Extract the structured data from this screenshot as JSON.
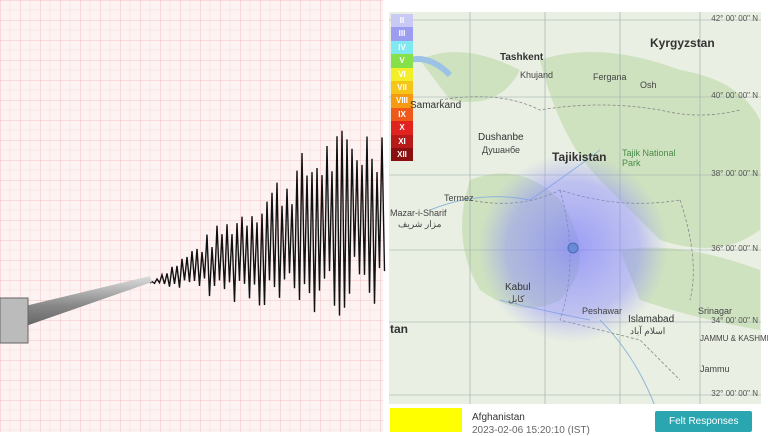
{
  "legend": {
    "items": [
      {
        "label": "II",
        "color": "#c9c9f5"
      },
      {
        "label": "III",
        "color": "#9c9cf0"
      },
      {
        "label": "IV",
        "color": "#7fe8f0"
      },
      {
        "label": "V",
        "color": "#86e04a"
      },
      {
        "label": "VI",
        "color": "#f2ef2a"
      },
      {
        "label": "VII",
        "color": "#f5c518"
      },
      {
        "label": "VIII",
        "color": "#f59a12"
      },
      {
        "label": "IX",
        "color": "#ef5a1a"
      },
      {
        "label": "X",
        "color": "#e0231e"
      },
      {
        "label": "XI",
        "color": "#b81a1a"
      },
      {
        "label": "XII",
        "color": "#8a1010"
      }
    ]
  },
  "places": {
    "kyrgyzstan": "Kyrgyzstan",
    "tashkent": "Tashkent",
    "khujand": "Khujand",
    "fergana": "Fergana",
    "osh": "Osh",
    "samarkand": "Samarkand",
    "dushanbe": "Dushanbe",
    "dushanbe_cyr": "Душанбе",
    "tajikistan": "Tajikistan",
    "tajik_park": "Tajik National Park",
    "termez": "Termez",
    "mazar": "Mazar-i-Sharif",
    "mazar_fa": "مزار شریف",
    "kabul": "Kabul",
    "kabul_fa": "کابل",
    "peshawar": "Peshawar",
    "islamabad": "Islamabad",
    "islamabad_ur": "اسلام آباد",
    "srinagar": "Srinagar",
    "jammu_kashmir": "JAMMU & KASHMIR",
    "jammu": "Jammu",
    "pakistan_cut": "tan"
  },
  "lat_labels": [
    "42° 00' 00\" N",
    "40° 00' 00\" N",
    "38° 00' 00\" N",
    "36° 00' 00\" N",
    "34° 00' 00\" N",
    "32° 00' 00\" N"
  ],
  "info": {
    "region": "Afghanistan",
    "time": "2023-02-06 15:20:10 (IST)"
  },
  "button": {
    "label": "Felt Responses"
  }
}
